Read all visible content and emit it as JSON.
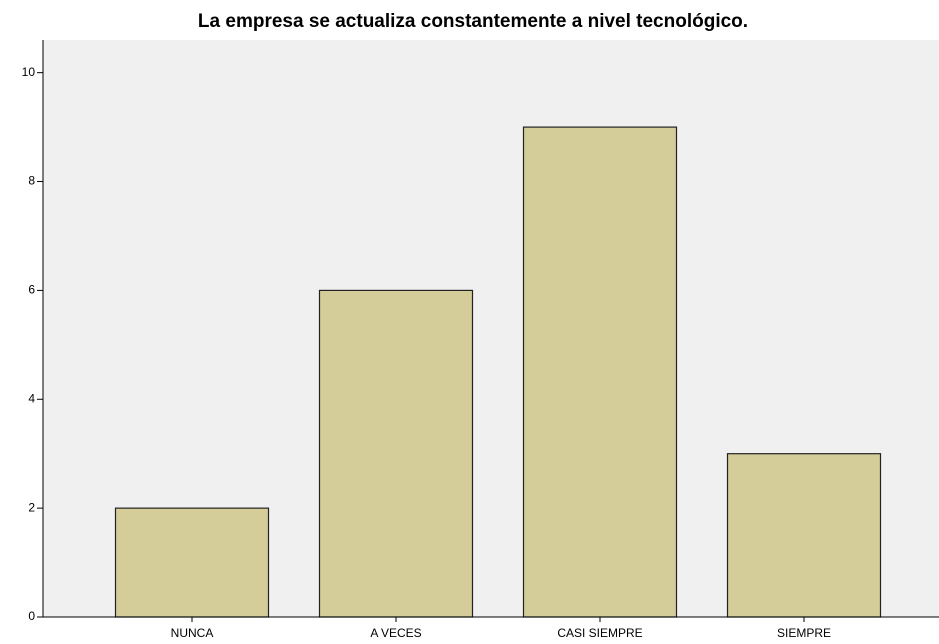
{
  "chart_data": {
    "type": "bar",
    "title": "La empresa se actualiza constantemente a nivel tecnológico.",
    "categories": [
      "NUNCA",
      "A VECES",
      "CASI SIEMPRE",
      "SIEMPRE"
    ],
    "values": [
      2,
      6,
      9,
      3
    ],
    "color": "#d4cd99",
    "ylim": [
      0,
      10.6
    ],
    "yticks": [
      0,
      2,
      4,
      6,
      8,
      10
    ],
    "grid": false
  }
}
